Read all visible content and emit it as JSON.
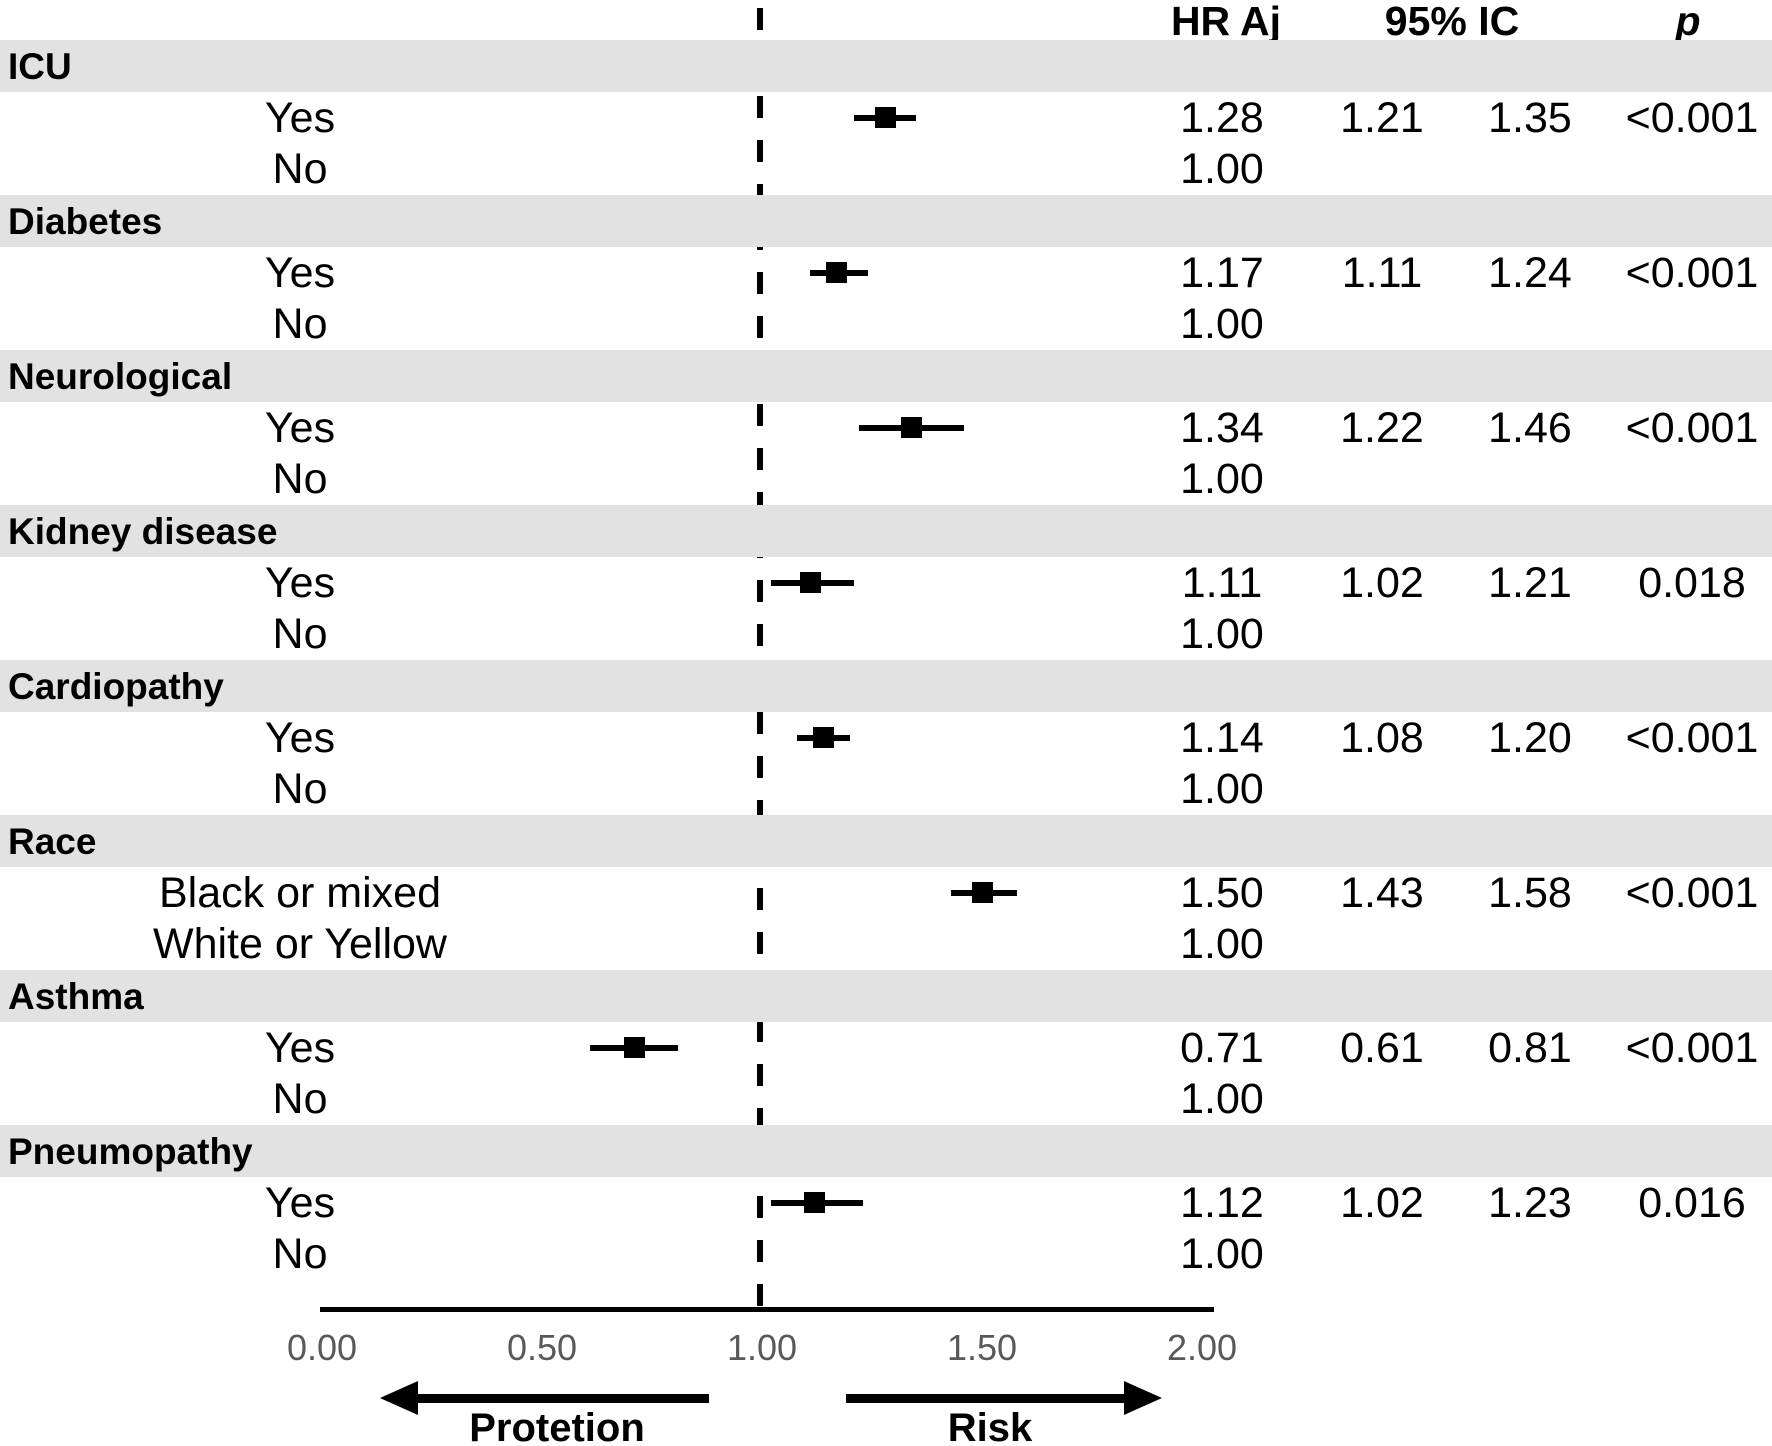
{
  "header": {
    "hr": "HR Aj",
    "ci": "95% IC",
    "p": "p"
  },
  "colors": {
    "band_gray": "#e2e2e2",
    "marker_black": "#000000",
    "tick_gray": "#595959"
  },
  "chart_data": {
    "type": "forest",
    "title": "",
    "columns": [
      "HR Aj",
      "95% IC low",
      "95% IC high",
      "p"
    ],
    "axis": {
      "min": 0.0,
      "max": 2.0,
      "tick_values": [
        0.0,
        0.5,
        1.0,
        1.5,
        2.0
      ],
      "tick_labels": [
        "0.00",
        "0.50",
        "1.00",
        "1.50",
        "2.00"
      ],
      "reference_line": 1.0
    },
    "direction_labels": {
      "left": "Protetion",
      "right": "Risk"
    },
    "groups": [
      {
        "label": "ICU",
        "rows": [
          {
            "label": "Yes",
            "hr": "1.28",
            "lo": "1.21",
            "hi": "1.35",
            "p": "<0.001",
            "est_v": 1.28,
            "lo_v": 1.21,
            "hi_v": 1.35
          },
          {
            "label": "No",
            "hr": "1.00",
            "lo": "",
            "hi": "",
            "p": ""
          }
        ]
      },
      {
        "label": "Diabetes",
        "rows": [
          {
            "label": "Yes",
            "hr": "1.17",
            "lo": "1.11",
            "hi": "1.24",
            "p": "<0.001",
            "est_v": 1.17,
            "lo_v": 1.11,
            "hi_v": 1.24
          },
          {
            "label": "No",
            "hr": "1.00",
            "lo": "",
            "hi": "",
            "p": ""
          }
        ]
      },
      {
        "label": "Neurological",
        "rows": [
          {
            "label": "Yes",
            "hr": "1.34",
            "lo": "1.22",
            "hi": "1.46",
            "p": "<0.001",
            "est_v": 1.34,
            "lo_v": 1.22,
            "hi_v": 1.46
          },
          {
            "label": "No",
            "hr": "1.00",
            "lo": "",
            "hi": "",
            "p": ""
          }
        ]
      },
      {
        "label": "Kidney disease",
        "rows": [
          {
            "label": "Yes",
            "hr": "1.11",
            "lo": "1.02",
            "hi": "1.21",
            "p": "0.018",
            "est_v": 1.11,
            "lo_v": 1.02,
            "hi_v": 1.21
          },
          {
            "label": "No",
            "hr": "1.00",
            "lo": "",
            "hi": "",
            "p": ""
          }
        ]
      },
      {
        "label": "Cardiopathy",
        "rows": [
          {
            "label": "Yes",
            "hr": "1.14",
            "lo": "1.08",
            "hi": "1.20",
            "p": "<0.001",
            "est_v": 1.14,
            "lo_v": 1.08,
            "hi_v": 1.2
          },
          {
            "label": "No",
            "hr": "1.00",
            "lo": "",
            "hi": "",
            "p": ""
          }
        ]
      },
      {
        "label": "Race",
        "rows": [
          {
            "label": "Black or mixed",
            "hr": "1.50",
            "lo": "1.43",
            "hi": "1.58",
            "p": "<0.001",
            "est_v": 1.5,
            "lo_v": 1.43,
            "hi_v": 1.58
          },
          {
            "label": "White or Yellow",
            "hr": "1.00",
            "lo": "",
            "hi": "",
            "p": ""
          }
        ]
      },
      {
        "label": "Asthma",
        "rows": [
          {
            "label": "Yes",
            "hr": "0.71",
            "lo": "0.61",
            "hi": "0.81",
            "p": "<0.001",
            "est_v": 0.71,
            "lo_v": 0.61,
            "hi_v": 0.81
          },
          {
            "label": "No",
            "hr": "1.00",
            "lo": "",
            "hi": "",
            "p": ""
          }
        ]
      },
      {
        "label": "Pneumopathy",
        "rows": [
          {
            "label": "Yes",
            "hr": "1.12",
            "lo": "1.02",
            "hi": "1.23",
            "p": "0.016",
            "est_v": 1.12,
            "lo_v": 1.02,
            "hi_v": 1.23
          },
          {
            "label": "No",
            "hr": "1.00",
            "lo": "",
            "hi": "",
            "p": ""
          }
        ]
      }
    ]
  }
}
